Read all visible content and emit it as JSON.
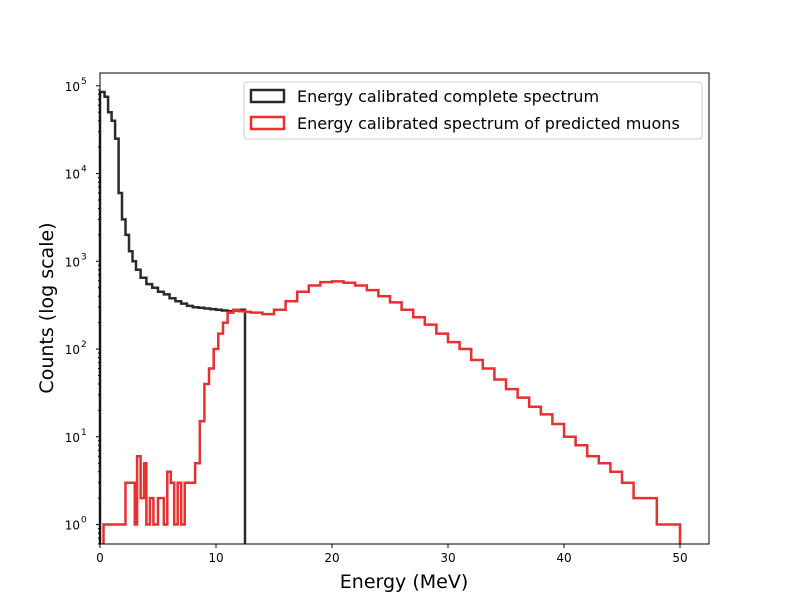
{
  "chart_data": {
    "type": "histogram",
    "xlabel": "Energy (MeV)",
    "ylabel": "Counts (log scale)",
    "xlim": [
      0,
      52.5
    ],
    "ylim": [
      0.6,
      140000
    ],
    "y_scale": "log",
    "grid": false,
    "legend_placement": "top-right",
    "x_ticks": [
      0,
      10,
      20,
      30,
      40,
      50
    ],
    "x_tick_labels": [
      "0",
      "10",
      "20",
      "30",
      "40",
      "50"
    ],
    "y_ticks": [
      1,
      10,
      100,
      1000,
      10000,
      100000
    ],
    "y_tick_labels": [
      "10",
      "10",
      "10",
      "10",
      "10",
      "10"
    ],
    "y_tick_exponents": [
      "0",
      "1",
      "2",
      "3",
      "4",
      "5"
    ],
    "series": [
      {
        "name": "Energy calibrated complete spectrum",
        "color": "#2b2b2b",
        "x": [
          0,
          0.4,
          0.7,
          1.0,
          1.3,
          1.6,
          1.9,
          2.2,
          2.5,
          2.8,
          3.1,
          3.5,
          4.0,
          4.5,
          5.0,
          5.5,
          6.0,
          6.5,
          7.0,
          7.5,
          8.0,
          8.5,
          9.0,
          9.5,
          10.0,
          10.5,
          11.0,
          11.5,
          12.0
        ],
        "values": [
          85000,
          75000,
          50000,
          40000,
          25000,
          6000,
          3000,
          2000,
          1300,
          1000,
          800,
          650,
          550,
          500,
          450,
          420,
          380,
          350,
          330,
          310,
          300,
          295,
          290,
          285,
          280,
          275,
          270,
          275,
          280
        ]
      },
      {
        "name": "Energy calibrated spectrum of predicted muons",
        "color": "#e83030",
        "x": [
          0.3,
          1.5,
          2.2,
          3.0,
          3.2,
          3.5,
          3.8,
          4.0,
          4.3,
          4.6,
          5.0,
          5.5,
          5.8,
          6.1,
          6.4,
          6.7,
          7.0,
          7.3,
          7.6,
          7.9,
          8.2,
          8.6,
          9.0,
          9.4,
          9.8,
          10.2,
          10.6,
          11.0,
          11.5,
          12.0,
          12.5,
          13.0,
          14.0,
          15.0,
          16.0,
          17.0,
          18.0,
          19.0,
          20.0,
          21.0,
          22.0,
          23.0,
          24.0,
          25.0,
          26.0,
          27.0,
          28.0,
          29.0,
          30.0,
          31.0,
          32.0,
          33.0,
          34.0,
          35.0,
          36.0,
          37.0,
          38.0,
          39.0,
          40.0,
          41.0,
          42.0,
          43.0,
          44.0,
          45.0,
          46.0,
          47.0,
          48.0,
          49.0
        ],
        "values": [
          1,
          1,
          3,
          1,
          6,
          2,
          5,
          1,
          2,
          1,
          2,
          1,
          4,
          3,
          1,
          3,
          1,
          3,
          3,
          3,
          5,
          15,
          40,
          60,
          100,
          150,
          200,
          260,
          280,
          270,
          265,
          260,
          250,
          280,
          350,
          450,
          530,
          580,
          590,
          570,
          530,
          470,
          400,
          340,
          280,
          230,
          190,
          150,
          120,
          100,
          75,
          60,
          45,
          35,
          28,
          22,
          18,
          14,
          10,
          8,
          6,
          5,
          4,
          3,
          2,
          2,
          1,
          1
        ]
      }
    ]
  }
}
